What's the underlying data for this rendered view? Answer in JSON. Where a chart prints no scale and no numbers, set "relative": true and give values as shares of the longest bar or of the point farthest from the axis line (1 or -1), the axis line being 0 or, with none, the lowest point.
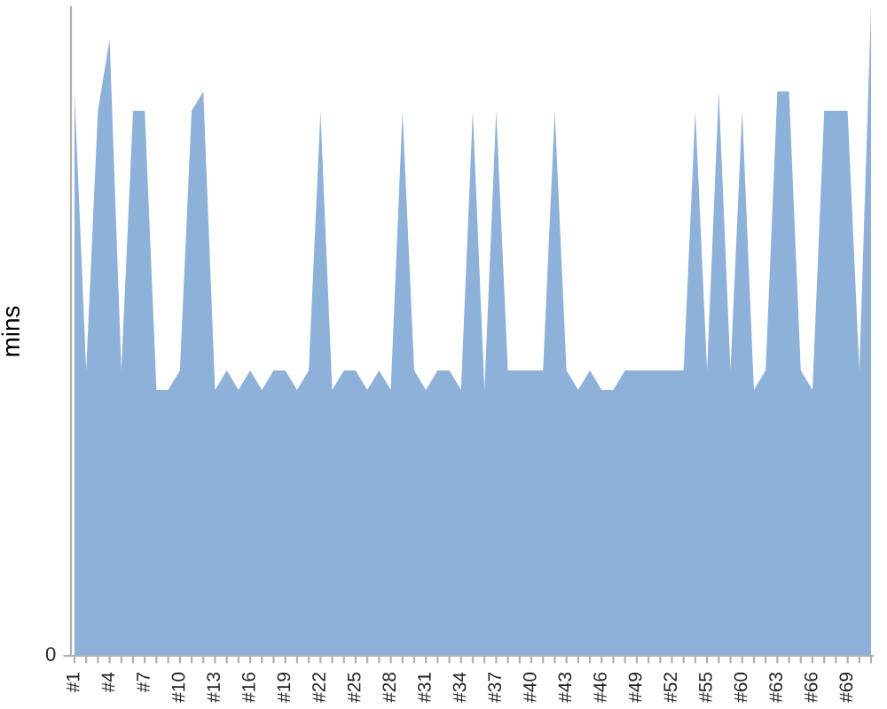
{
  "chart_data": {
    "type": "area",
    "relative": true,
    "ylabel": "mins",
    "color": "#8eb1da",
    "annotations": [
      "0"
    ],
    "categories": [
      "#1",
      null,
      null,
      "#4",
      null,
      null,
      "#7",
      null,
      null,
      "#10",
      null,
      null,
      "#13",
      null,
      null,
      "#16",
      null,
      null,
      "#19",
      null,
      null,
      "#22",
      null,
      null,
      "#25",
      null,
      null,
      "#28",
      null,
      null,
      "#31",
      null,
      null,
      "#34",
      null,
      null,
      "#37",
      null,
      null,
      "#40",
      null,
      null,
      "#43",
      null,
      null,
      "#46",
      null,
      null,
      "#49",
      null,
      null,
      "#52",
      null,
      null,
      "#55",
      null,
      null,
      "#60",
      null,
      null,
      "#63",
      null,
      null,
      "#66",
      null,
      null,
      "#69",
      null,
      null
    ],
    "values": [
      0.87,
      0.44,
      0.84,
      0.95,
      0.44,
      0.84,
      0.84,
      0.41,
      0.41,
      0.44,
      0.84,
      0.87,
      0.41,
      0.44,
      0.41,
      0.44,
      0.41,
      0.44,
      0.44,
      0.41,
      0.44,
      0.84,
      0.41,
      0.44,
      0.44,
      0.41,
      0.44,
      0.41,
      0.84,
      0.44,
      0.41,
      0.44,
      0.44,
      0.41,
      0.84,
      0.41,
      0.84,
      0.44,
      0.44,
      0.44,
      0.44,
      0.84,
      0.44,
      0.41,
      0.44,
      0.41,
      0.41,
      0.44,
      0.44,
      0.44,
      0.44,
      0.44,
      0.44,
      0.84,
      0.44,
      0.87,
      0.44,
      0.84,
      0.41,
      0.44,
      0.87,
      0.87,
      0.44,
      0.41,
      0.84,
      0.84,
      0.84,
      0.44,
      1
    ]
  }
}
